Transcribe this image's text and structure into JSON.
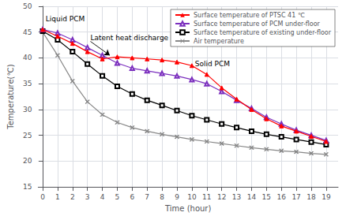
{
  "chart_data": {
    "type": "line",
    "xlabel": "Time (hour)",
    "ylabel": "Temperature(℃)",
    "xlim": [
      -0.3,
      19.8
    ],
    "ylim": [
      15,
      50
    ],
    "xticks": [
      0,
      1,
      2,
      3,
      4,
      5,
      6,
      7,
      8,
      9,
      10,
      11,
      12,
      13,
      14,
      15,
      16,
      17,
      18,
      19
    ],
    "yticks": [
      15,
      20,
      25,
      30,
      35,
      40,
      45,
      50
    ],
    "x": [
      0,
      1,
      2,
      3,
      4,
      5,
      6,
      7,
      8,
      9,
      10,
      11,
      12,
      13,
      14,
      15,
      16,
      17,
      18,
      19
    ],
    "series": [
      {
        "name": "Surface temperature of PTSC 41 ℃",
        "color": "#ff0000",
        "marker": "triangle",
        "values": [
          45.5,
          44.2,
          42.8,
          41.2,
          39.8,
          40.2,
          40.0,
          39.8,
          39.6,
          39.2,
          38.5,
          36.8,
          34.2,
          32.0,
          30.0,
          28.2,
          26.8,
          25.8,
          24.8,
          23.8
        ]
      },
      {
        "name": "Surface temperature of PCM under-floor",
        "color": "#7b2fbe",
        "marker": "open triangle",
        "values": [
          45.5,
          44.8,
          43.5,
          42.0,
          40.5,
          39.0,
          38.0,
          37.5,
          37.0,
          36.5,
          35.8,
          35.0,
          33.5,
          31.8,
          30.2,
          28.5,
          27.2,
          26.0,
          25.0,
          24.0
        ]
      },
      {
        "name": "Surface temperature of existing under-floor",
        "color": "#000000",
        "marker": "open square",
        "values": [
          45.2,
          43.5,
          41.2,
          38.8,
          36.5,
          34.5,
          33.0,
          31.8,
          30.8,
          29.8,
          28.8,
          28.0,
          27.2,
          26.5,
          25.8,
          25.2,
          24.7,
          24.2,
          23.7,
          23.2
        ]
      },
      {
        "name": "Air temperature",
        "color": "#888888",
        "marker": "x",
        "values": [
          45.0,
          40.5,
          35.5,
          31.5,
          29.0,
          27.5,
          26.5,
          25.8,
          25.2,
          24.7,
          24.2,
          23.8,
          23.4,
          23.0,
          22.6,
          22.3,
          22.0,
          21.8,
          21.5,
          21.3
        ]
      }
    ],
    "annotations": [
      {
        "text": "Liquid PCM",
        "x": 0.2,
        "y": 46.8
      },
      {
        "text": "Latent heat discharge",
        "x": 3.2,
        "y": 43.2,
        "arrow": [
          4.5,
          40.5
        ]
      },
      {
        "text": "Solid PCM",
        "x": 10.2,
        "y": 38.2
      }
    ],
    "grid": true,
    "legend": "upper right"
  }
}
